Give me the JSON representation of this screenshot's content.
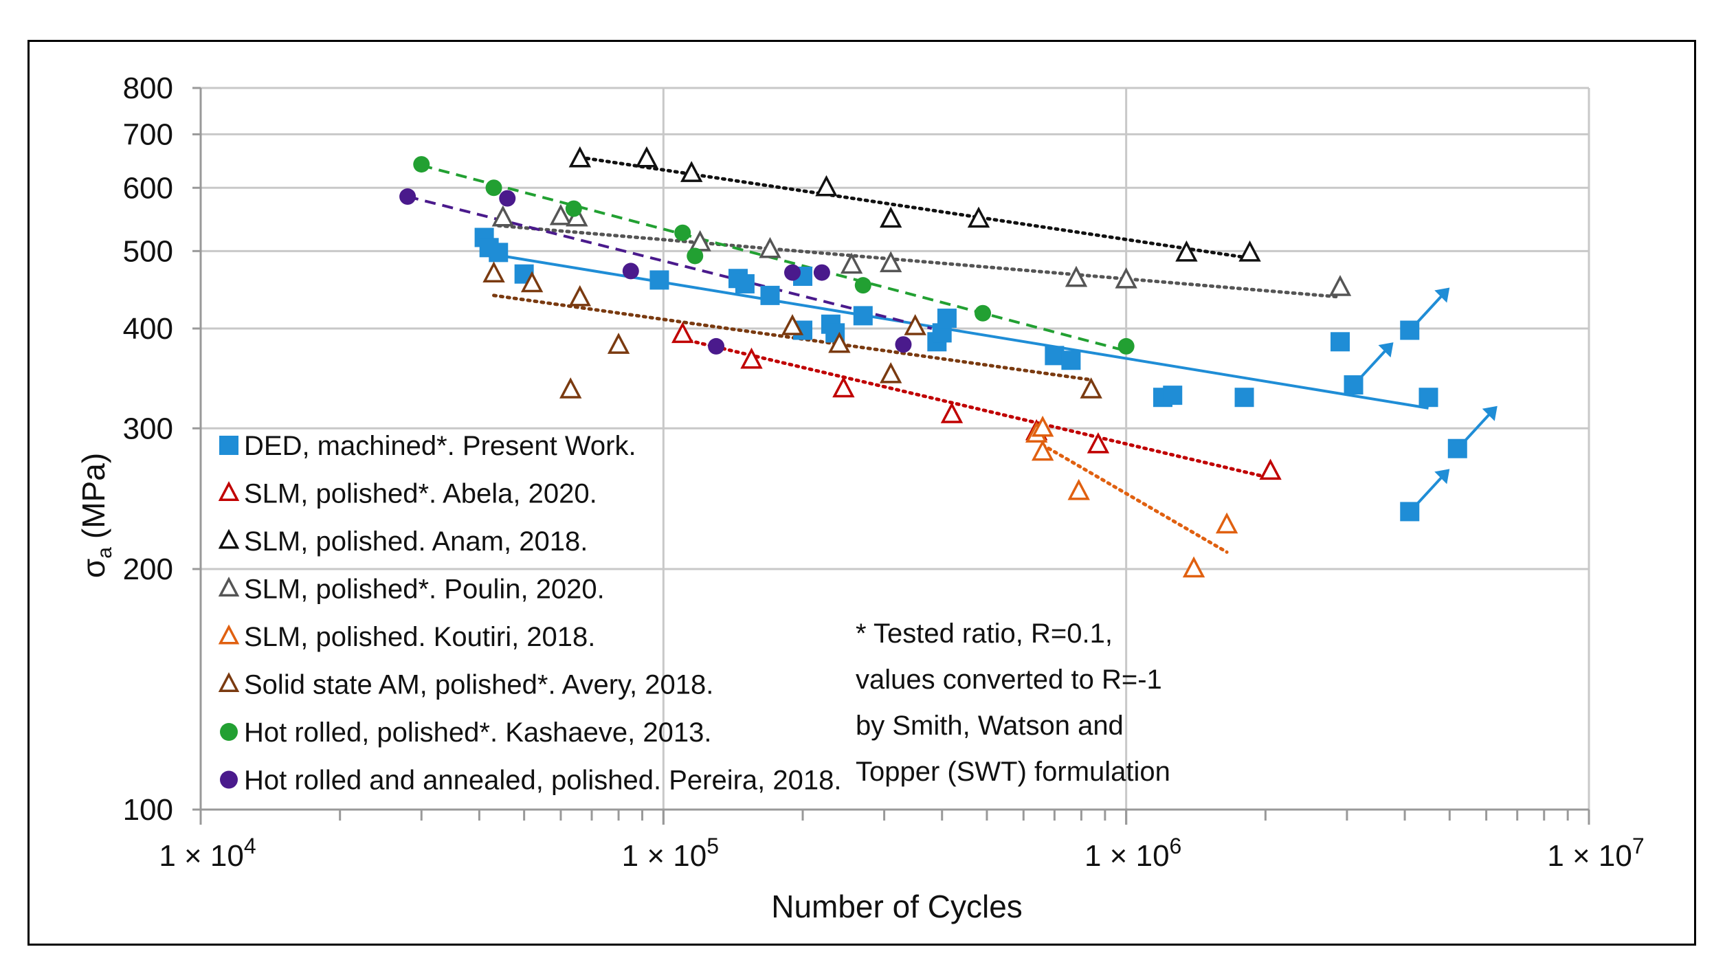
{
  "chart_data": {
    "type": "scatter",
    "xscale": "log",
    "yscale": "log",
    "xlim": [
      10000,
      10000000
    ],
    "ylim": [
      100,
      800
    ],
    "xlabel": "Number of Cycles",
    "ylabel": "σa (MPa)",
    "ylabel_main": "σ",
    "ylabel_sub": "a",
    "ylabel_unit": "(MPa)",
    "x_ticks": [
      {
        "value": 10000,
        "mant": "1 × 10",
        "exp": "4"
      },
      {
        "value": 100000,
        "mant": "1 × 10",
        "exp": "5"
      },
      {
        "value": 1000000,
        "mant": "1 × 10",
        "exp": "6"
      },
      {
        "value": 10000000,
        "mant": "1 × 10",
        "exp": "7"
      }
    ],
    "y_ticks": [
      100,
      200,
      300,
      400,
      500,
      600,
      700,
      800
    ],
    "note": [
      "* Tested ratio, R=0.1,",
      "values converted to R=-1",
      "by Smith, Watson and",
      "Topper  (SWT) formulation"
    ],
    "series": [
      {
        "name": "DED, machined*. Present Work.",
        "marker": "square",
        "color": "#1f8dd6",
        "fill": "#1f8dd6",
        "points": [
          [
            41000,
            520
          ],
          [
            42000,
            505
          ],
          [
            44000,
            498
          ],
          [
            50000,
            468
          ],
          [
            98000,
            460
          ],
          [
            145000,
            462
          ],
          [
            150000,
            455
          ],
          [
            170000,
            440
          ],
          [
            200000,
            465
          ],
          [
            200000,
            398
          ],
          [
            230000,
            405
          ],
          [
            235000,
            395
          ],
          [
            270000,
            415
          ],
          [
            390000,
            385
          ],
          [
            400000,
            395
          ],
          [
            410000,
            412
          ],
          [
            700000,
            370
          ],
          [
            760000,
            365
          ],
          [
            1200000,
            328
          ],
          [
            1260000,
            330
          ],
          [
            1800000,
            328
          ],
          [
            2900000,
            385
          ],
          [
            3100000,
            340
          ],
          [
            4100000,
            398
          ],
          [
            4500000,
            328
          ],
          [
            5200000,
            283
          ],
          [
            4100000,
            236
          ]
        ],
        "runouts": [
          [
            3100000,
            340
          ],
          [
            4100000,
            398
          ],
          [
            5200000,
            283
          ],
          [
            4100000,
            236
          ]
        ],
        "trend": {
          "x": [
            43000,
            4500000
          ],
          "y": [
            495,
            318
          ],
          "style": "solid"
        }
      },
      {
        "name": "SLM, polished*. Abela, 2020.",
        "marker": "triangle-open",
        "color": "#c00000",
        "points": [
          [
            110000,
            393
          ],
          [
            155000,
            365
          ],
          [
            245000,
            336
          ],
          [
            420000,
            312
          ],
          [
            640000,
            297
          ],
          [
            870000,
            286
          ],
          [
            2050000,
            265
          ]
        ],
        "trend": {
          "x": [
            110000,
            2050000
          ],
          "y": [
            388,
            260
          ],
          "style": "dotted"
        }
      },
      {
        "name": "SLM, polished. Anam, 2018.",
        "marker": "triangle-open",
        "color": "#111111",
        "points": [
          [
            66000,
            652
          ],
          [
            92000,
            652
          ],
          [
            115000,
            625
          ],
          [
            225000,
            600
          ],
          [
            310000,
            548
          ],
          [
            480000,
            548
          ],
          [
            1350000,
            497
          ],
          [
            1850000,
            497
          ]
        ],
        "trend": {
          "x": [
            66000,
            1850000
          ],
          "y": [
            655,
            490
          ],
          "style": "dotted"
        }
      },
      {
        "name": "SLM, polished*. Poulin, 2020.",
        "marker": "triangle-open",
        "color": "#555555",
        "points": [
          [
            45000,
            550
          ],
          [
            60000,
            552
          ],
          [
            65000,
            550
          ],
          [
            120000,
            512
          ],
          [
            170000,
            502
          ],
          [
            255000,
            480
          ],
          [
            310000,
            482
          ],
          [
            780000,
            462
          ],
          [
            1000000,
            460
          ],
          [
            2900000,
            450
          ]
        ],
        "trend": {
          "x": [
            44000,
            2900000
          ],
          "y": [
            538,
            438
          ],
          "style": "dotted"
        }
      },
      {
        "name": "SLM, polished. Koutiri, 2018.",
        "marker": "triangle-open",
        "color": "#e06010",
        "points": [
          [
            640000,
            295
          ],
          [
            660000,
            300
          ],
          [
            660000,
            280
          ],
          [
            790000,
            250
          ],
          [
            1400000,
            200
          ],
          [
            1650000,
            227
          ]
        ],
        "trend": {
          "x": [
            660000,
            1650000
          ],
          "y": [
            286,
            210
          ],
          "style": "dotted"
        }
      },
      {
        "name": "Solid state AM, polished*. Avery, 2018.",
        "marker": "triangle-open",
        "color": "#7a3a10",
        "points": [
          [
            43000,
            468
          ],
          [
            52000,
            455
          ],
          [
            63000,
            335
          ],
          [
            66000,
            437
          ],
          [
            80000,
            381
          ],
          [
            190000,
            402
          ],
          [
            240000,
            382
          ],
          [
            310000,
            350
          ],
          [
            350000,
            402
          ],
          [
            840000,
            335
          ]
        ],
        "trend": {
          "x": [
            43000,
            840000
          ],
          "y": [
            440,
            345
          ],
          "style": "dotted"
        }
      },
      {
        "name": "Hot rolled, polished*. Kashaeve, 2013.",
        "marker": "circle",
        "color": "#22a032",
        "fill": "#22a032",
        "points": [
          [
            30000,
            642
          ],
          [
            43000,
            600
          ],
          [
            64000,
            565
          ],
          [
            110000,
            527
          ],
          [
            117000,
            493
          ],
          [
            270000,
            453
          ],
          [
            490000,
            418
          ],
          [
            1000000,
            380
          ]
        ],
        "trend": {
          "x": [
            30000,
            1000000
          ],
          "y": [
            640,
            375
          ],
          "style": "dashed"
        }
      },
      {
        "name": "Hot rolled and annealed, polished. Pereira, 2018.",
        "marker": "circle",
        "color": "#4a1a8c",
        "fill": "#4a1a8c",
        "points": [
          [
            28000,
            585
          ],
          [
            46000,
            582
          ],
          [
            85000,
            472
          ],
          [
            130000,
            380
          ],
          [
            190000,
            470
          ],
          [
            220000,
            470
          ],
          [
            330000,
            382
          ]
        ],
        "trend": {
          "x": [
            28000,
            380000
          ],
          "y": [
            585,
            400
          ],
          "style": "dashed"
        }
      }
    ]
  }
}
